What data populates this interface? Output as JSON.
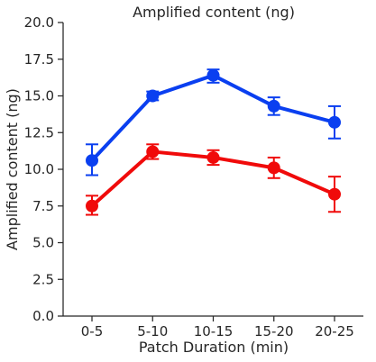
{
  "chart_data": {
    "type": "line",
    "title": "Amplified content (ng)",
    "xlabel": "Patch Duration (min)",
    "ylabel": "Amplified content (ng)",
    "categories": [
      "0-5",
      "5-10",
      "10-15",
      "15-20",
      "20-25"
    ],
    "ylim": [
      0,
      20
    ],
    "yticks": [
      "0.0",
      "2.5",
      "5.0",
      "7.5",
      "10.0",
      "12.5",
      "15.0",
      "17.5",
      "20.0"
    ],
    "grid": false,
    "series": [
      {
        "color": "#0a3ff0",
        "values": [
          10.6,
          15.0,
          16.4,
          14.3,
          13.2
        ],
        "error_low": [
          9.6,
          14.7,
          15.9,
          13.7,
          12.1
        ],
        "error_high": [
          11.7,
          15.3,
          16.8,
          14.9,
          14.3
        ]
      },
      {
        "color": "#f00a0a",
        "values": [
          7.5,
          11.2,
          10.8,
          10.1,
          8.3
        ],
        "error_low": [
          6.9,
          10.7,
          10.3,
          9.4,
          7.1
        ],
        "error_high": [
          8.2,
          11.7,
          11.3,
          10.8,
          9.5
        ]
      }
    ]
  }
}
